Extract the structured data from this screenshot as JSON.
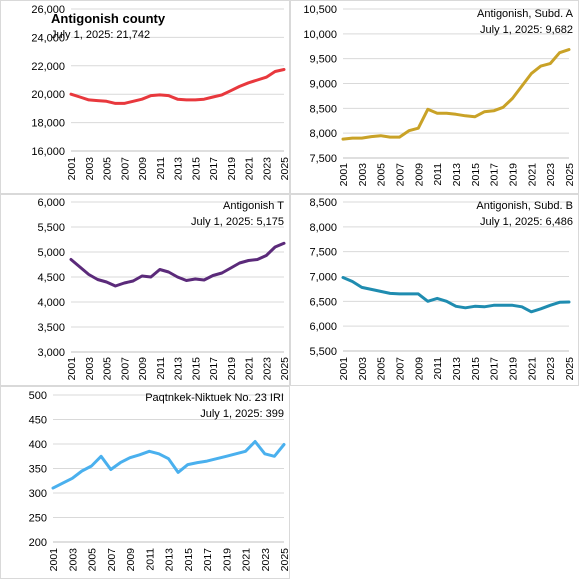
{
  "chart_data": [
    {
      "type": "line",
      "title": "Antigonish county",
      "subtitle": "July 1, 2025: 21,742",
      "color": "#e8383d",
      "x": [
        2001,
        2002,
        2003,
        2004,
        2005,
        2006,
        2007,
        2008,
        2009,
        2010,
        2011,
        2012,
        2013,
        2014,
        2015,
        2016,
        2017,
        2018,
        2019,
        2020,
        2021,
        2022,
        2023,
        2024,
        2025
      ],
      "xticks": [
        "2001",
        "2003",
        "2005",
        "2007",
        "2009",
        "2011",
        "2013",
        "2015",
        "2017",
        "2019",
        "2021",
        "2023",
        "2025"
      ],
      "values": [
        20000,
        19800,
        19600,
        19550,
        19500,
        19350,
        19350,
        19500,
        19650,
        19900,
        19950,
        19900,
        19650,
        19600,
        19600,
        19650,
        19800,
        19950,
        20250,
        20550,
        20800,
        21000,
        21200,
        21600,
        21742
      ],
      "ylim": [
        16000,
        26000
      ],
      "yticks": [
        "16,000",
        "18,000",
        "20,000",
        "22,000",
        "24,000",
        "26,000"
      ],
      "yticks_values": [
        16000,
        18000,
        20000,
        22000,
        24000,
        26000
      ]
    },
    {
      "type": "line",
      "title": "Antigonish, Subd. A",
      "subtitle": "July 1, 2025: 9,682",
      "color": "#c9a227",
      "x": [
        2001,
        2002,
        2003,
        2004,
        2005,
        2006,
        2007,
        2008,
        2009,
        2010,
        2011,
        2012,
        2013,
        2014,
        2015,
        2016,
        2017,
        2018,
        2019,
        2020,
        2021,
        2022,
        2023,
        2024,
        2025
      ],
      "xticks": [
        "2001",
        "2003",
        "2005",
        "2007",
        "2009",
        "2011",
        "2013",
        "2015",
        "2017",
        "2019",
        "2021",
        "2023",
        "2025"
      ],
      "values": [
        7880,
        7900,
        7900,
        7930,
        7950,
        7920,
        7920,
        8050,
        8100,
        8480,
        8400,
        8400,
        8380,
        8350,
        8330,
        8430,
        8450,
        8520,
        8700,
        8950,
        9200,
        9350,
        9400,
        9620,
        9682
      ],
      "ylim": [
        7500,
        10500
      ],
      "yticks": [
        "7,500",
        "8,000",
        "8,500",
        "9,000",
        "9,500",
        "10,000",
        "10,500"
      ],
      "yticks_values": [
        7500,
        8000,
        8500,
        9000,
        9500,
        10000,
        10500
      ]
    },
    {
      "type": "line",
      "title": "Antigonish T",
      "subtitle": "July 1, 2025: 5,175",
      "color": "#5b2a7a",
      "x": [
        2001,
        2002,
        2003,
        2004,
        2005,
        2006,
        2007,
        2008,
        2009,
        2010,
        2011,
        2012,
        2013,
        2014,
        2015,
        2016,
        2017,
        2018,
        2019,
        2020,
        2021,
        2022,
        2023,
        2024,
        2025
      ],
      "xticks": [
        "2001",
        "2003",
        "2005",
        "2007",
        "2009",
        "2011",
        "2013",
        "2015",
        "2017",
        "2019",
        "2021",
        "2023",
        "2025"
      ],
      "values": [
        4850,
        4700,
        4550,
        4450,
        4400,
        4320,
        4380,
        4420,
        4520,
        4500,
        4650,
        4600,
        4500,
        4430,
        4460,
        4440,
        4530,
        4580,
        4680,
        4780,
        4830,
        4850,
        4930,
        5100,
        5175
      ],
      "ylim": [
        3000,
        6000
      ],
      "yticks": [
        "3,000",
        "3,500",
        "4,000",
        "4,500",
        "5,000",
        "5,500",
        "6,000"
      ],
      "yticks_values": [
        3000,
        3500,
        4000,
        4500,
        5000,
        5500,
        6000
      ]
    },
    {
      "type": "line",
      "title": "Antigonish, Subd. B",
      "subtitle": "July 1, 2025: 6,486",
      "color": "#1f8cb0",
      "x": [
        2001,
        2002,
        2003,
        2004,
        2005,
        2006,
        2007,
        2008,
        2009,
        2010,
        2011,
        2012,
        2013,
        2014,
        2015,
        2016,
        2017,
        2018,
        2019,
        2020,
        2021,
        2022,
        2023,
        2024,
        2025
      ],
      "xticks": [
        "2001",
        "2003",
        "2005",
        "2007",
        "2009",
        "2011",
        "2013",
        "2015",
        "2017",
        "2019",
        "2021",
        "2023",
        "2025"
      ],
      "values": [
        6980,
        6900,
        6780,
        6740,
        6700,
        6660,
        6650,
        6650,
        6650,
        6500,
        6560,
        6500,
        6400,
        6370,
        6400,
        6390,
        6420,
        6420,
        6420,
        6390,
        6290,
        6350,
        6420,
        6480,
        6486
      ],
      "ylim": [
        5500,
        8500
      ],
      "yticks": [
        "5,500",
        "6,000",
        "6,500",
        "7,000",
        "7,500",
        "8,000",
        "8,500"
      ],
      "yticks_values": [
        5500,
        6000,
        6500,
        7000,
        7500,
        8000,
        8500
      ]
    },
    {
      "type": "line",
      "title": "Paqtnkek-Niktuek No. 23  IRI",
      "subtitle": "July 1, 2025: 399",
      "color": "#4ab0ee",
      "x": [
        2001,
        2002,
        2003,
        2004,
        2005,
        2006,
        2007,
        2008,
        2009,
        2010,
        2011,
        2012,
        2013,
        2014,
        2015,
        2016,
        2017,
        2018,
        2019,
        2020,
        2021,
        2022,
        2023,
        2024,
        2025
      ],
      "xticks": [
        "2001",
        "2003",
        "2005",
        "2007",
        "2009",
        "2011",
        "2013",
        "2015",
        "2017",
        "2019",
        "2021",
        "2023",
        "2025"
      ],
      "values": [
        310,
        320,
        330,
        345,
        355,
        375,
        348,
        362,
        372,
        378,
        385,
        380,
        370,
        342,
        358,
        362,
        365,
        370,
        375,
        380,
        385,
        405,
        380,
        375,
        399
      ],
      "ylim": [
        200,
        500
      ],
      "yticks": [
        "200",
        "250",
        "300",
        "350",
        "400",
        "450",
        "500"
      ],
      "yticks_values": [
        200,
        250,
        300,
        350,
        400,
        450,
        500
      ]
    }
  ]
}
